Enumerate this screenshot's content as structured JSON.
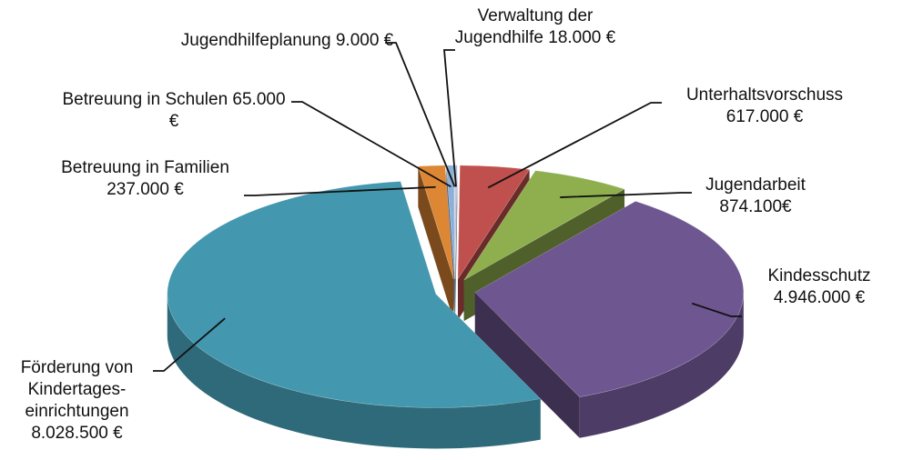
{
  "chart_data": {
    "type": "pie",
    "categories": [
      "Verwaltung der Jugendhilfe",
      "Unterhaltsvorschuss",
      "Jugendarbeit",
      "Kindesschutz",
      "Förderung von Kindertages-einrichtungen",
      "Betreuung in Familien",
      "Betreuung in Schulen",
      "Jugendhilfeplanung"
    ],
    "values": [
      18000,
      617000,
      874100,
      4946000,
      8028500,
      237000,
      65000,
      9000
    ],
    "value_labels": [
      "18.000 €",
      "617.000 €",
      "874.100€",
      "4.946.000 €",
      "8.028.500 €",
      "237.000 €",
      "65.000 €",
      "9.000 €"
    ],
    "colors": [
      "#aab8d6",
      "#c0504d",
      "#8faf4f",
      "#6e5690",
      "#4397ae",
      "#dd8634",
      "#8db0d8",
      "#c9d1e3"
    ]
  }
}
